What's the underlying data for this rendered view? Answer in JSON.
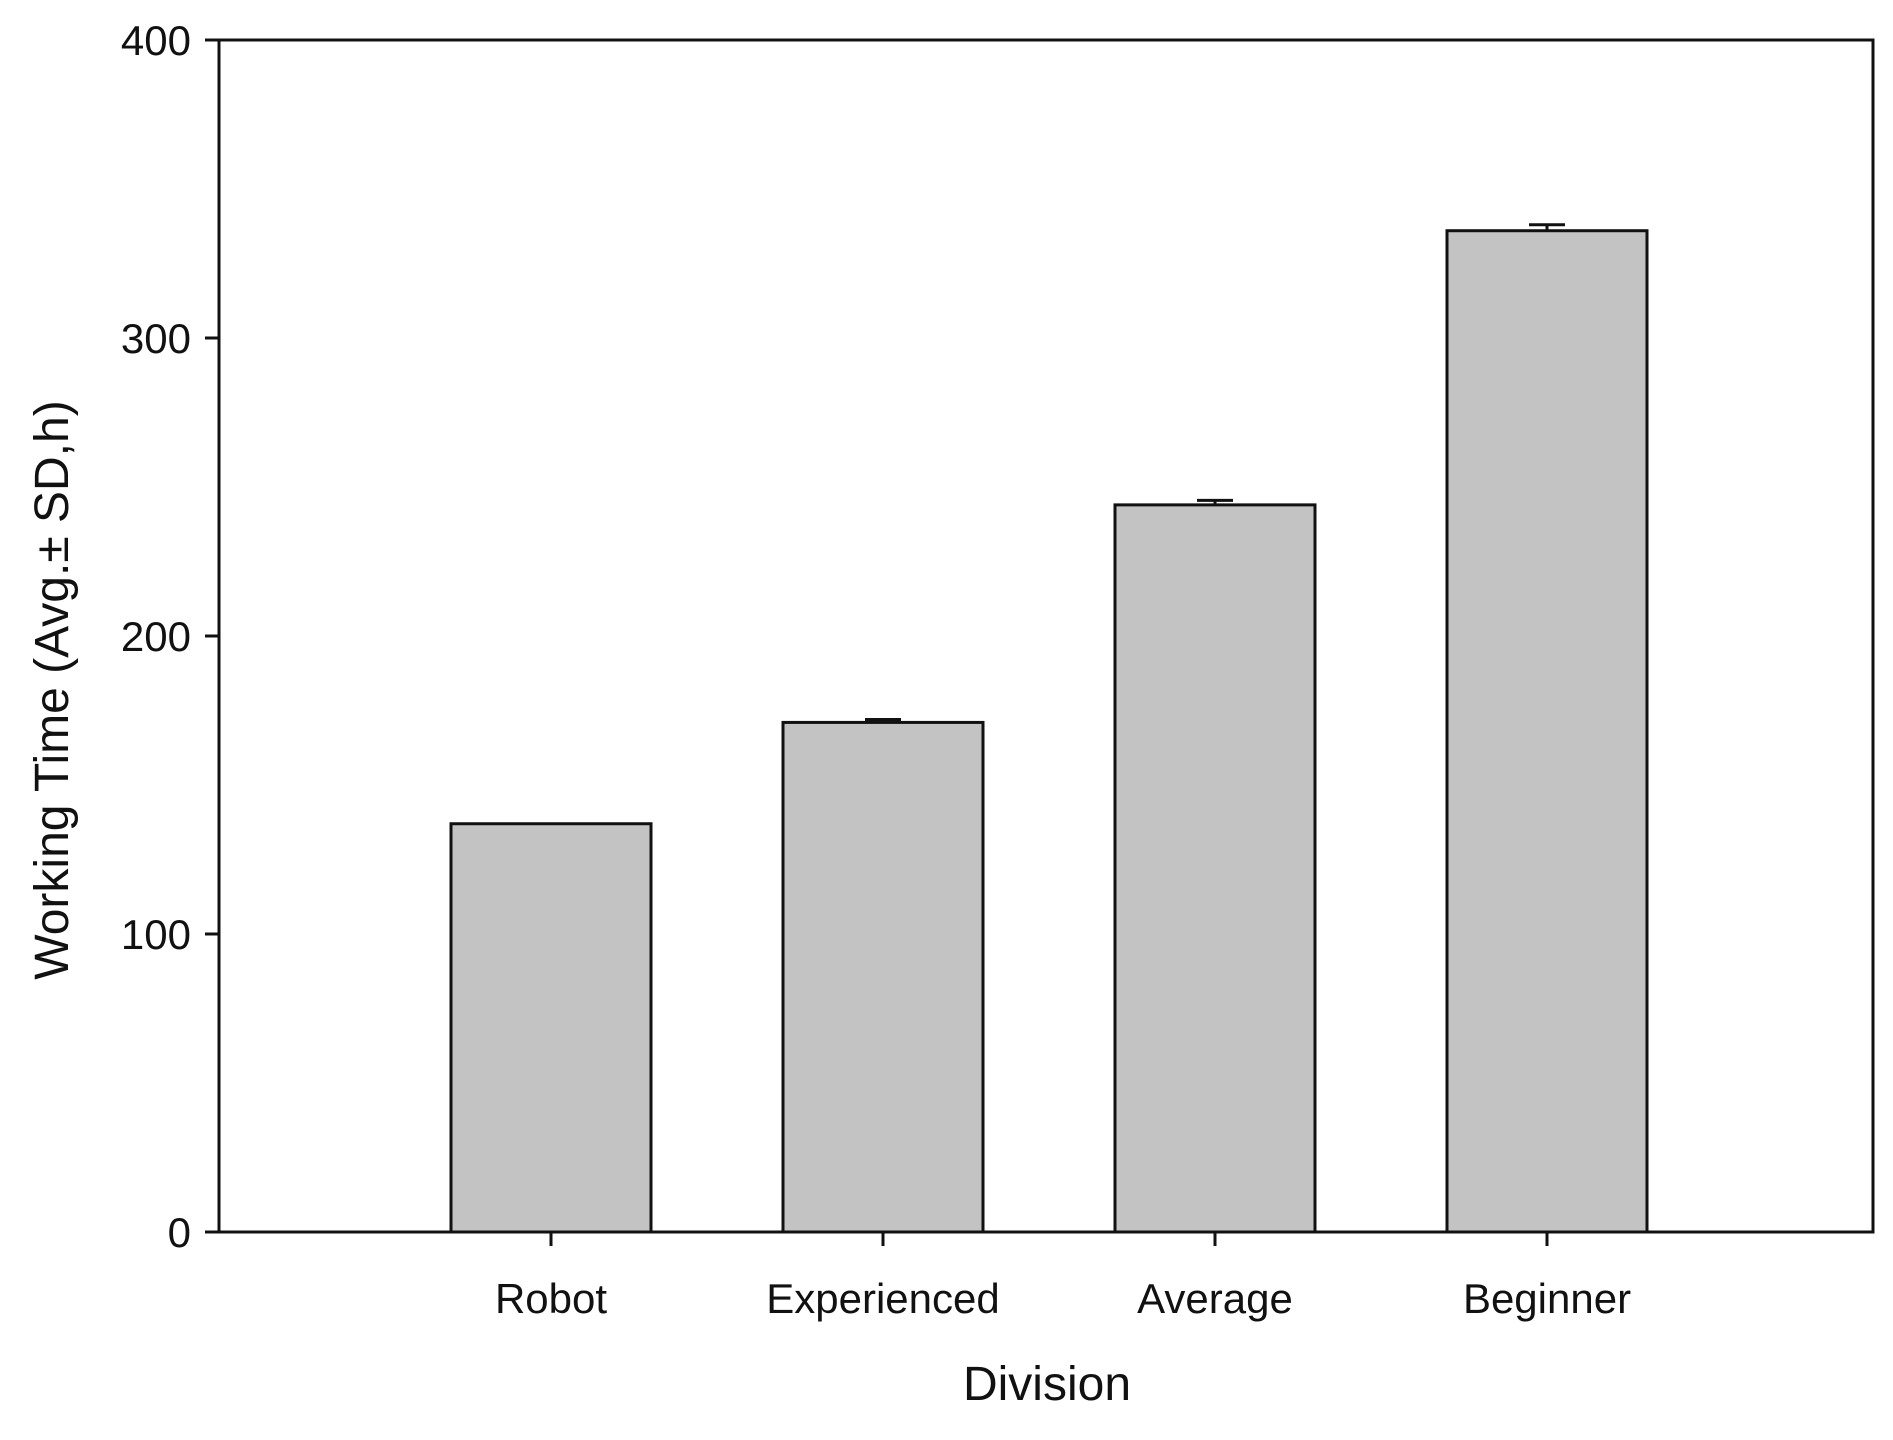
{
  "chart_data": {
    "type": "bar",
    "title": "",
    "xlabel": "Division",
    "ylabel": "Working Time (Avg.±  SD,h)",
    "categories": [
      "Robot",
      "Experienced",
      "Average",
      "Beginner"
    ],
    "values": [
      137,
      171,
      244,
      336
    ],
    "errors": [
      0,
      1,
      1.5,
      2
    ],
    "ylim": [
      0,
      400
    ],
    "yticks": [
      0,
      100,
      200,
      300,
      400
    ],
    "grid": false,
    "legend": "none",
    "bar_color": "#c3c3c3",
    "edge_color": "#111111"
  }
}
